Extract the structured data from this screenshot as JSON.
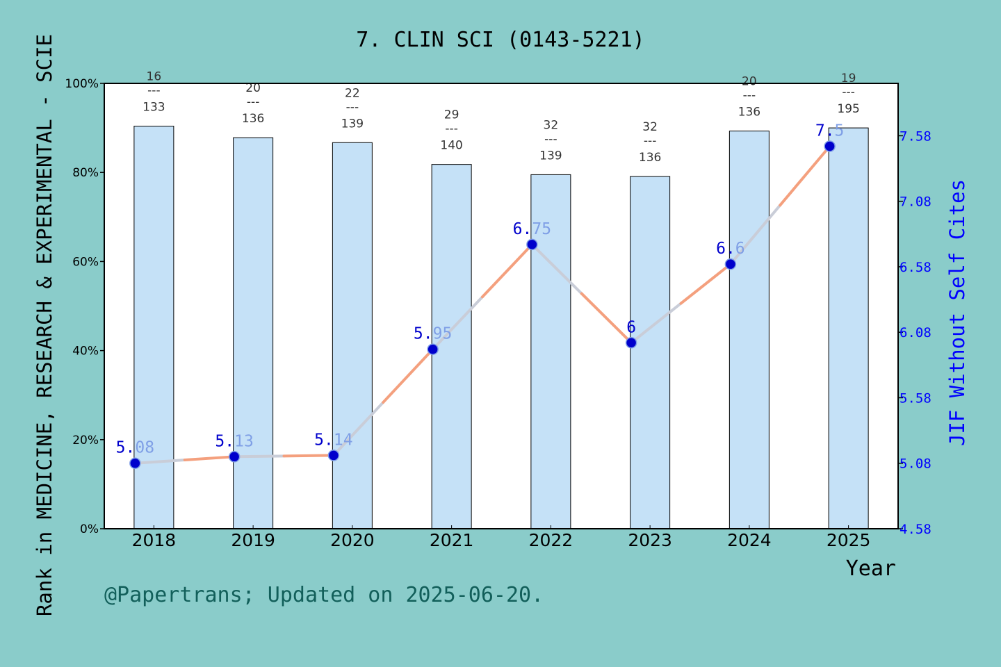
{
  "chart_data": {
    "type": "bar+line",
    "title": "7. CLIN SCI (0143-5221)",
    "xlabel": "Year",
    "ylabel_left": "Rank in MEDICINE, RESEARCH & EXPERIMENTAL - SCIE",
    "ylabel_right": "JIF Without Self Cites",
    "ylim_left": [
      0,
      100
    ],
    "ylim_right": [
      4.58,
      7.98
    ],
    "yticks_left": [
      "0%",
      "20%",
      "40%",
      "60%",
      "80%",
      "100%"
    ],
    "yticks_right": [
      "4.58",
      "5.08",
      "5.58",
      "6.08",
      "6.58",
      "7.08",
      "7.58"
    ],
    "categories": [
      "2018",
      "2019",
      "2020",
      "2021",
      "2022",
      "2023",
      "2024",
      "2025"
    ],
    "bars": {
      "name": "Rank percentile",
      "values": [
        90.4,
        87.8,
        86.7,
        81.8,
        79.5,
        79.1,
        89.3,
        90.0
      ],
      "color": "#c5e1f7",
      "rank_labels": [
        {
          "top": "16",
          "sep": "---",
          "bottom": "133"
        },
        {
          "top": "20",
          "sep": "---",
          "bottom": "136"
        },
        {
          "top": "22",
          "sep": "---",
          "bottom": "139"
        },
        {
          "top": "29",
          "sep": "---",
          "bottom": "140"
        },
        {
          "top": "32",
          "sep": "---",
          "bottom": "139"
        },
        {
          "top": "32",
          "sep": "---",
          "bottom": "136"
        },
        {
          "top": "20",
          "sep": "---",
          "bottom": "136"
        },
        {
          "top": "19",
          "sep": "---",
          "bottom": "195"
        }
      ]
    },
    "line": {
      "name": "JIF Without Self Cites",
      "values": [
        5.08,
        5.13,
        5.14,
        5.95,
        6.75,
        6.0,
        6.6,
        7.5
      ],
      "labels_a": [
        "5.",
        "5.",
        "5.",
        "5.",
        "6.",
        "6",
        "6.",
        "7."
      ],
      "labels_b": [
        "08",
        "13",
        "14",
        "95",
        "75",
        "",
        "6",
        "5"
      ],
      "marker_color": "#0000cc",
      "colors": [
        "#f4a07e",
        "#c9cdd8"
      ]
    },
    "legend": "none",
    "grid": false
  },
  "footer": {
    "credit": "@Papertrans; Updated on 2025-06-20."
  }
}
